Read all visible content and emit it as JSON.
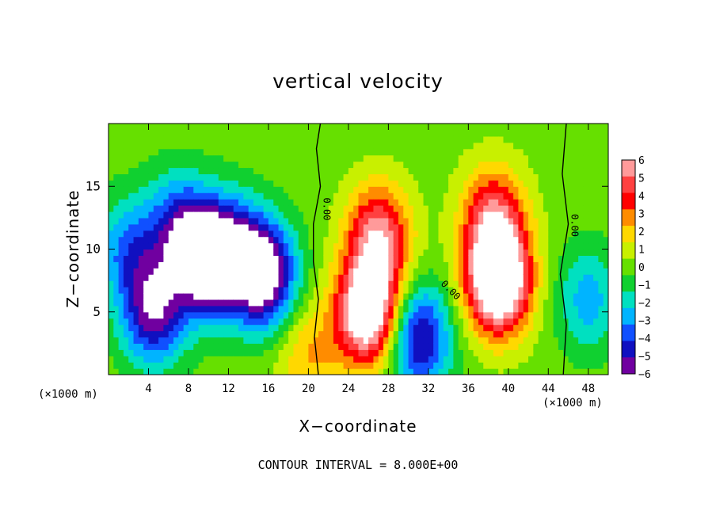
{
  "chart_data": {
    "type": "heatmap",
    "title": "vertical velocity",
    "xlabel": "X−coordinate",
    "ylabel": "Z−coordinate",
    "x_unit_left": "(×1000 m)",
    "x_unit_right": "(×1000 m)",
    "footer": "CONTOUR INTERVAL = 8.000E+00",
    "xlim": [
      0,
      50
    ],
    "ylim": [
      0,
      20
    ],
    "x_ticks": [
      "4",
      "8",
      "12",
      "16",
      "20",
      "24",
      "28",
      "32",
      "36",
      "40",
      "44",
      "48"
    ],
    "y_ticks": [
      "5",
      "10",
      "15"
    ],
    "colorbar": {
      "levels": [
        "6",
        "5",
        "4",
        "3",
        "2",
        "1",
        "0",
        "−1",
        "−2",
        "−3",
        "−4",
        "−5",
        "−6"
      ],
      "colors": [
        "#ff9a9a",
        "#ff4040",
        "#ff0000",
        "#ff8c00",
        "#ffd800",
        "#c8f000",
        "#66e000",
        "#10d030",
        "#00e0c0",
        "#00b4ff",
        "#1050ff",
        "#1010c0",
        "#7000a0"
      ],
      "range": [
        -6,
        6
      ]
    },
    "contour_labels": [
      "0.00",
      "0.00",
      "0.00"
    ],
    "features": [
      {
        "x": 4.5,
        "z": 5.0,
        "w": -6.0
      },
      {
        "x": 9.5,
        "z": 9.0,
        "w": -7.0
      },
      {
        "x": 15.5,
        "z": 8.0,
        "w": -8.0
      },
      {
        "x": 7.0,
        "z": 12.0,
        "w": -4.0
      },
      {
        "x": 12.0,
        "z": 10.0,
        "w": -5.0
      },
      {
        "x": 2.0,
        "z": 10.0,
        "w": -3.5
      },
      {
        "x": 20.0,
        "z": 1.5,
        "w": 2.5
      },
      {
        "x": 26.0,
        "z": 5.0,
        "w": 9.0
      },
      {
        "x": 27.0,
        "z": 11.0,
        "w": 6.0
      },
      {
        "x": 31.0,
        "z": 3.0,
        "w": -6.0
      },
      {
        "x": 39.0,
        "z": 7.5,
        "w": 10.0
      },
      {
        "x": 38.5,
        "z": 12.5,
        "w": 5.0
      },
      {
        "x": 48.0,
        "z": 6.0,
        "w": -3.0
      }
    ]
  }
}
